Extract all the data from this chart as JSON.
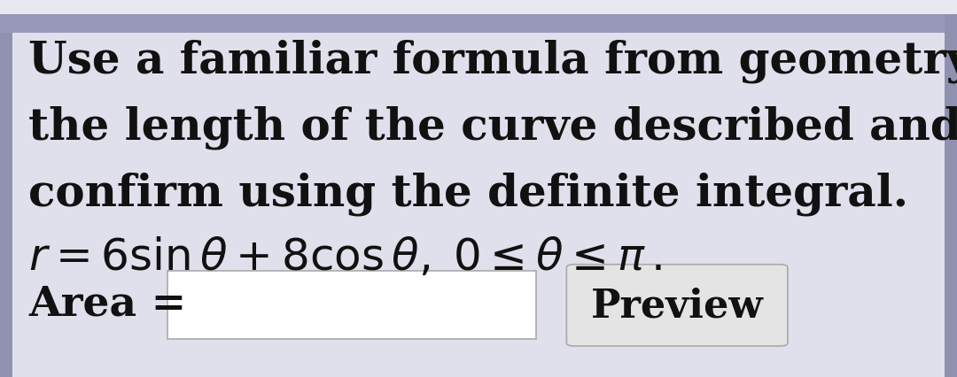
{
  "bg_outer": "#e8e8f0",
  "bg_inner": "#e0e0ec",
  "text_color": "#111111",
  "line1": "Use a familiar formula from geometry to find",
  "line2": "the length of the curve described and then",
  "line3": "confirm using the definite integral.",
  "line4": "$r = 6\\sin\\theta + 8\\cos\\theta,\\; 0 \\leq \\theta \\leq \\pi\\,.$",
  "label_area": "Area =",
  "label_preview": "Preview",
  "font_size_text": 36,
  "font_size_math": 36,
  "font_size_label": 34,
  "font_size_preview": 32,
  "top_bar_color": "#9898b8",
  "border_color": "#9090b0",
  "input_box_facecolor": "white",
  "preview_box_facecolor": "#e8e8e8"
}
